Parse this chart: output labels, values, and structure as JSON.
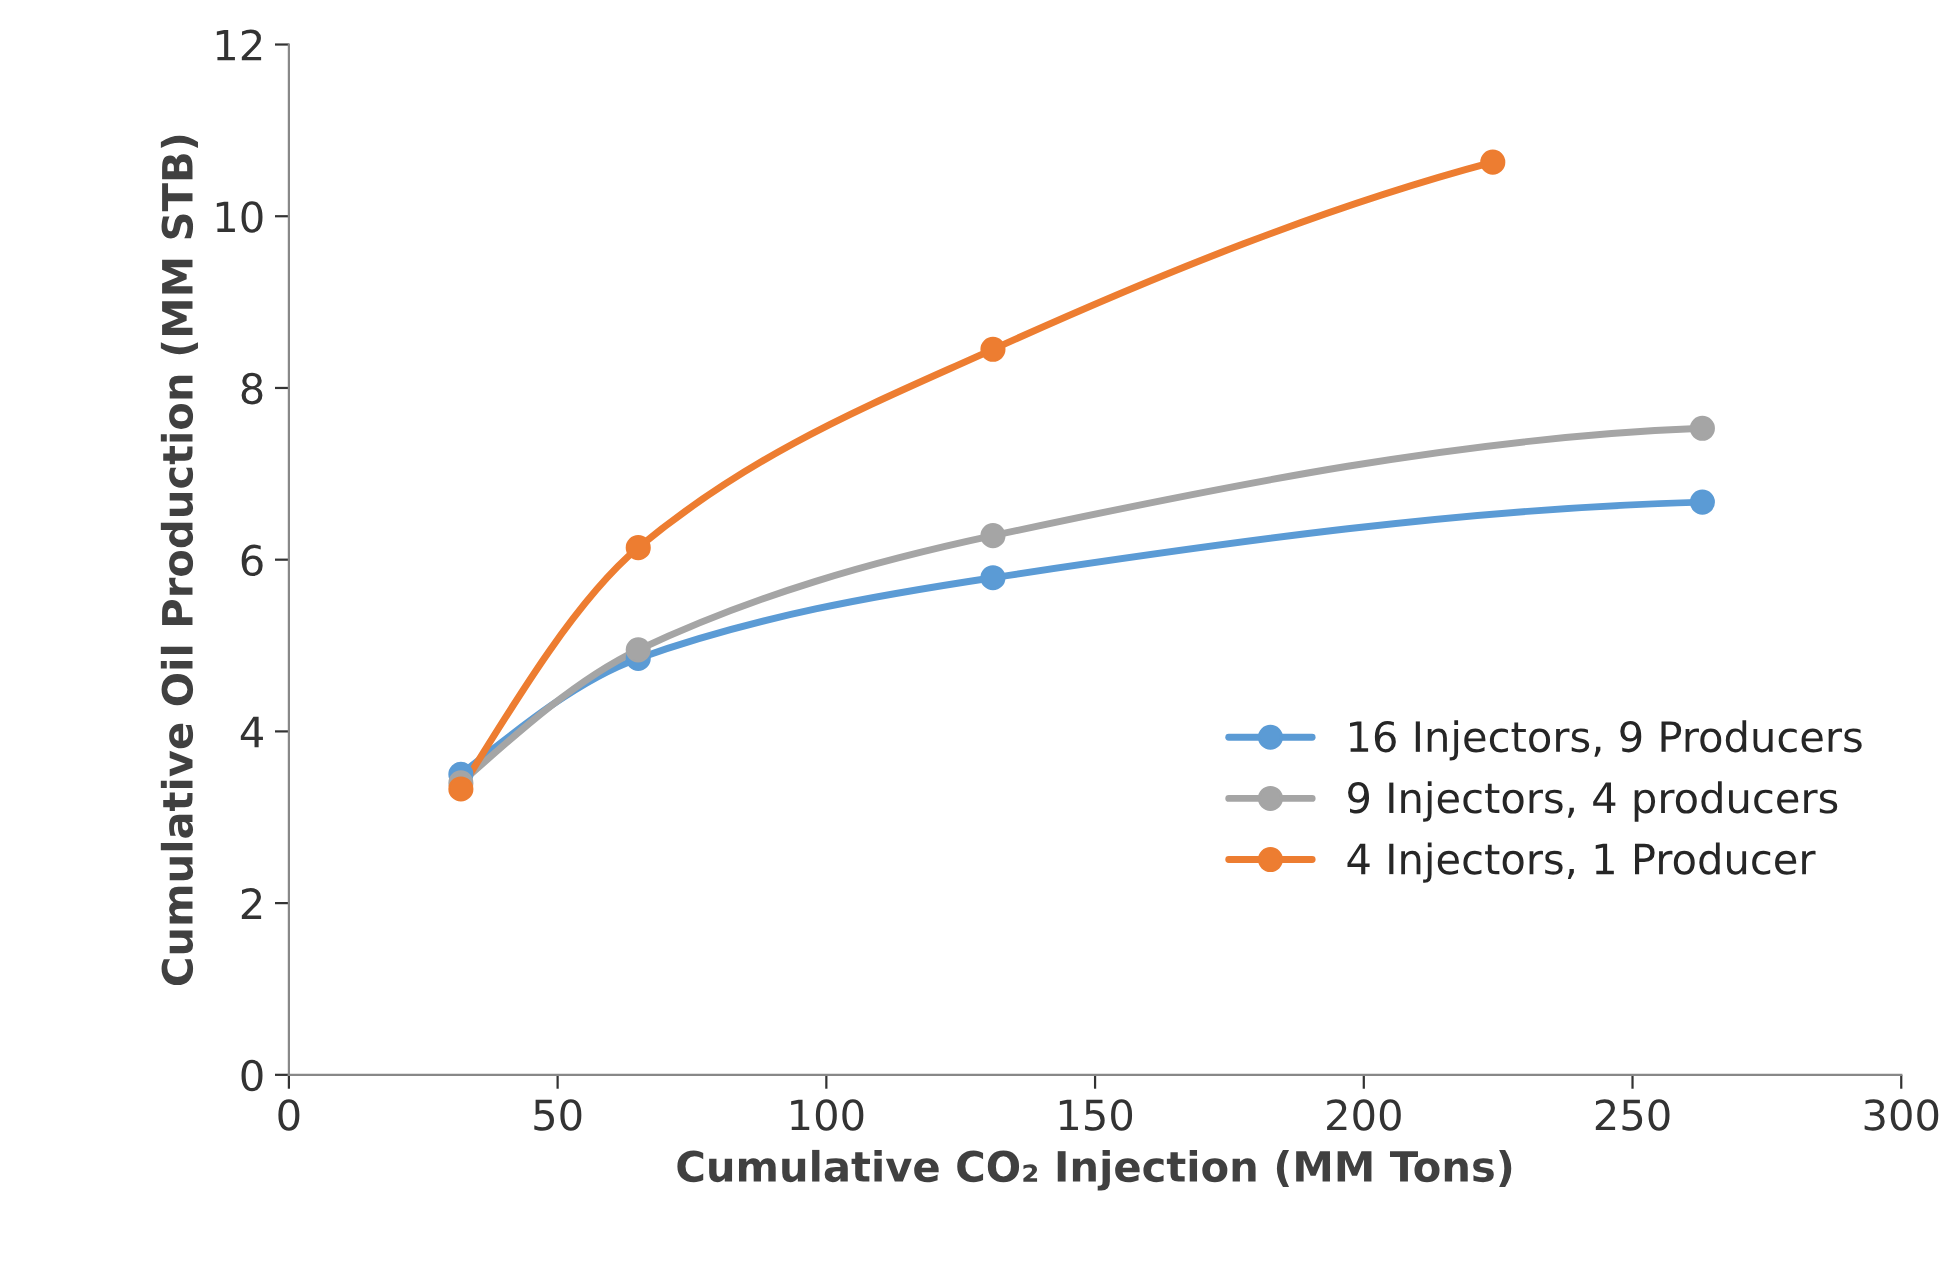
{
  "chart_data": {
    "type": "line",
    "xlabel": "Cumulative CO₂ Injection (MM Tons)",
    "ylabel": "Cumulative Oil Production (MM STB)",
    "xlim": [
      0,
      300
    ],
    "xticks": [
      0,
      50,
      100,
      150,
      200,
      250,
      300
    ],
    "ylim": [
      0,
      12
    ],
    "yticks": [
      0,
      2,
      4,
      6,
      8,
      10,
      12
    ],
    "grid": false,
    "legend": "lower right",
    "marker": "circle",
    "line_style": "solid",
    "series": [
      {
        "name": "16 Injectors, 9 Producers",
        "color": "#5b9bd5",
        "x": [
          32,
          65,
          131,
          263
        ],
        "values": [
          3.5,
          4.85,
          5.79,
          6.67
        ]
      },
      {
        "name": "9 Injectors, 4 producers",
        "color": "#a5a5a5",
        "x": [
          32,
          65,
          131,
          263
        ],
        "values": [
          3.4,
          4.95,
          6.28,
          7.53
        ]
      },
      {
        "name": "4 Injectors, 1 Producer",
        "color": "#ed7d31",
        "x": [
          32,
          65,
          131,
          224
        ],
        "values": [
          3.33,
          6.14,
          8.45,
          10.63
        ]
      }
    ]
  }
}
